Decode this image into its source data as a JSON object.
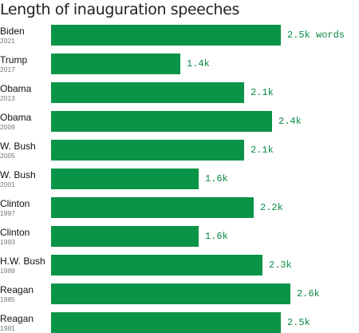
{
  "chart_data": {
    "type": "bar",
    "orientation": "horizontal",
    "title": "Length of inauguration speeches",
    "categories": [
      {
        "name": "Biden",
        "year": "2021"
      },
      {
        "name": "Trump",
        "year": "2017"
      },
      {
        "name": "Obama",
        "year": "2013"
      },
      {
        "name": "Obama",
        "year": "2009"
      },
      {
        "name": "W. Bush",
        "year": "2005"
      },
      {
        "name": "W. Bush",
        "year": "2001"
      },
      {
        "name": "Clinton",
        "year": "1997"
      },
      {
        "name": "Clinton",
        "year": "1993"
      },
      {
        "name": "H.W. Bush",
        "year": "1989"
      },
      {
        "name": "Reagan",
        "year": "1985"
      },
      {
        "name": "Reagan",
        "year": "1981"
      }
    ],
    "values": [
      2500,
      1400,
      2100,
      2400,
      2100,
      1600,
      2200,
      1600,
      2300,
      2600,
      2500
    ],
    "value_labels": [
      "2.5k words",
      "1.4k",
      "2.1k",
      "2.4k",
      "2.1k",
      "1.6k",
      "2.2k",
      "1.6k",
      "2.3k",
      "2.6k",
      "2.5k"
    ],
    "xlim": [
      0,
      2600
    ],
    "grid": false,
    "colors": {
      "bar": "#0a9447",
      "label": "#0a8a44"
    }
  }
}
